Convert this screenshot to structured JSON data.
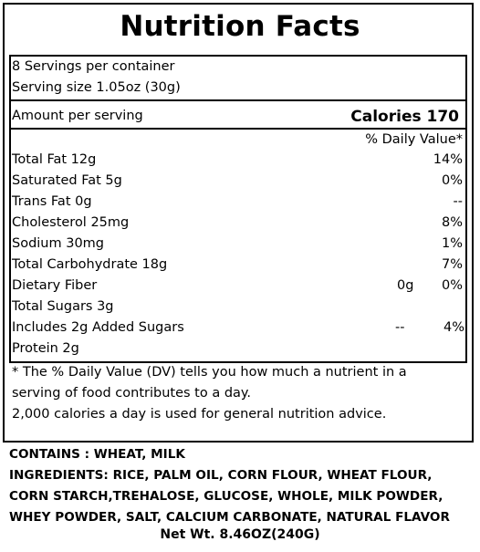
{
  "title": "Nutrition Facts",
  "servings_per_container": "8 Servings per container",
  "serving_size": "Serving size 1.05oz (30g)",
  "amount_per_serving": "Amount per serving",
  "calories": "Calories 170",
  "daily_value_header": "% Daily Value*",
  "nutrients": [
    {
      "label": "Total Fat 12g",
      "amount": "",
      "dv": "14%"
    },
    {
      "label": "Saturated Fat 5g",
      "amount": "",
      "dv": "0%"
    },
    {
      "label": "Trans Fat 0g",
      "amount": "",
      "dv": "--"
    },
    {
      "label": "Cholesterol 25mg",
      "amount": "",
      "dv": "8%"
    },
    {
      "label": "Sodium 30mg",
      "amount": "",
      "dv": "1%"
    },
    {
      "label": "Total Carbohydrate 18g",
      "amount": "",
      "dv": "7%"
    },
    {
      "label": "Dietary Fiber",
      "amount": "0g",
      "dv": "0%"
    },
    {
      "label": "Total Sugars 3g",
      "amount": "",
      "dv": ""
    },
    {
      "label": "Includes 2g Added Sugars",
      "amount": "--",
      "dv": "4%"
    },
    {
      "label": "Protein 2g",
      "amount": "",
      "dv": ""
    }
  ],
  "footnote": [
    "* The % Daily Value (DV) tells you how much a nutrient in a",
    "serving of food contributes to a day.",
    "2,000 calories a day is used for general nutrition advice."
  ],
  "contains": "CONTAINS : WHEAT, MILK",
  "ingredients_lines": [
    "INGREDIENTS: RICE, PALM OIL, CORN FLOUR, WHEAT FLOUR,",
    "CORN STARCH,TREHALOSE, GLUCOSE, WHOLE, MILK POWDER,",
    "WHEY POWDER, SALT, CALCIUM CARBONATE, NATURAL FLAVOR"
  ],
  "net_weight": "Net Wt. 8.46OZ(240G)"
}
